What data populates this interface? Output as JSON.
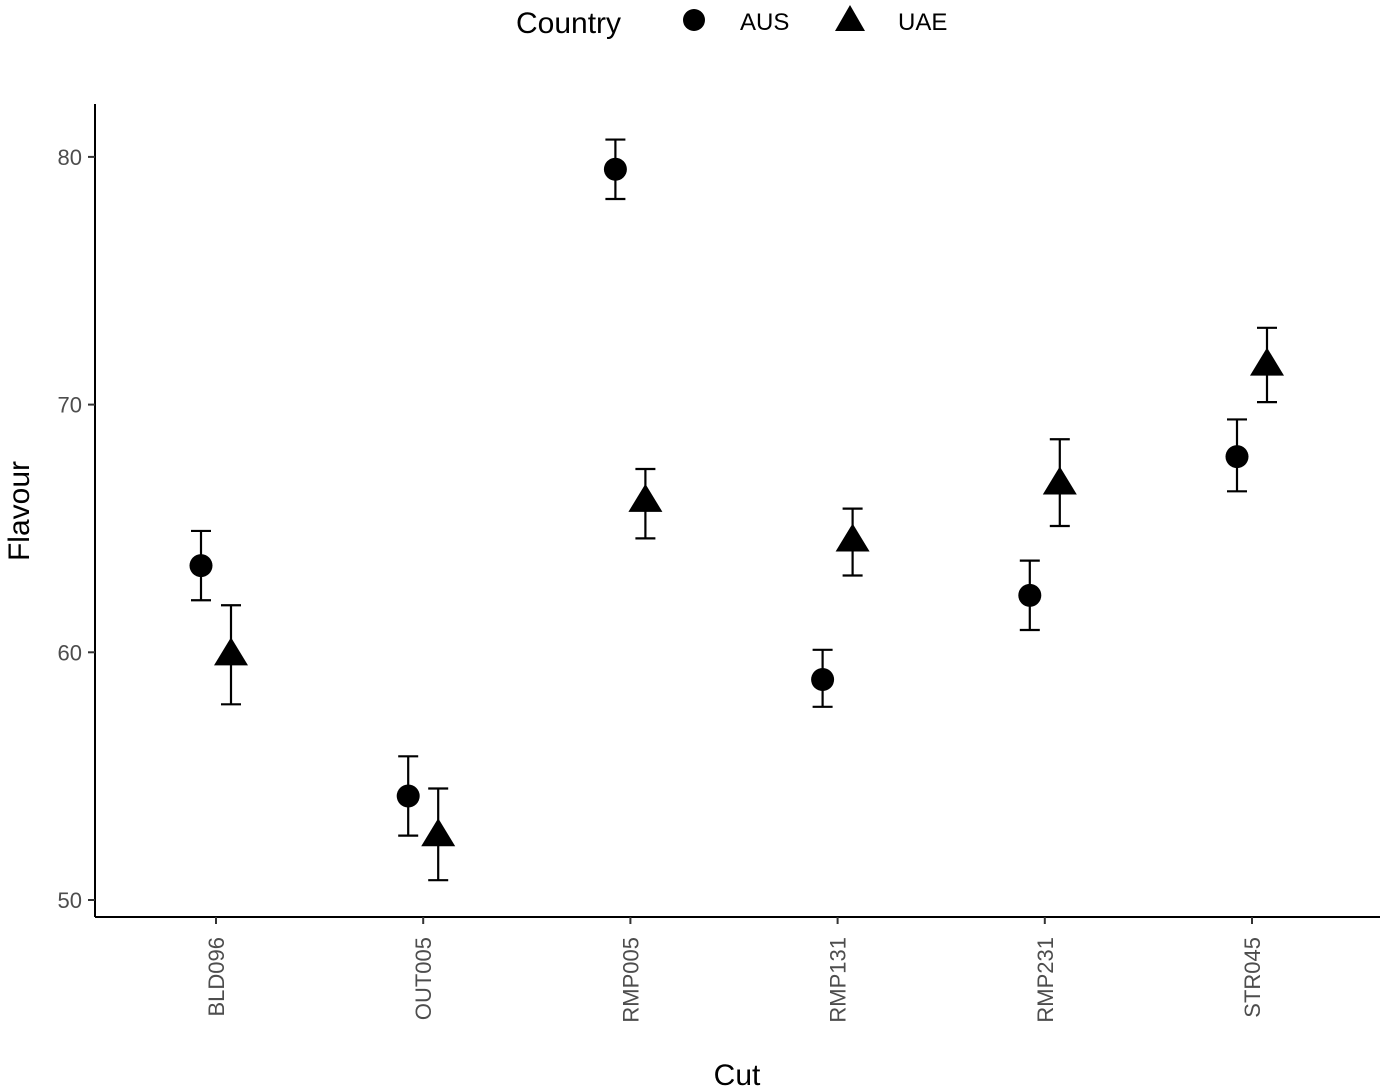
{
  "chart_data": {
    "type": "scatter",
    "title": "",
    "xlabel": "Cut",
    "ylabel": "Flavour",
    "ylim": [
      49.3,
      82.2
    ],
    "yticks": [
      50,
      60,
      70,
      80
    ],
    "grid": false,
    "legend": {
      "title": "Country",
      "position": "top"
    },
    "categories": [
      "BLD096",
      "OUT005",
      "RMP005",
      "RMP131",
      "RMP231",
      "STR045"
    ],
    "series": [
      {
        "name": "AUS",
        "marker": "circle",
        "values": [
          63.5,
          54.2,
          79.5,
          58.9,
          62.3,
          67.9
        ],
        "lower": [
          62.1,
          52.6,
          78.3,
          57.8,
          60.9,
          66.5
        ],
        "upper": [
          64.9,
          55.8,
          80.7,
          60.1,
          63.7,
          69.4
        ]
      },
      {
        "name": "UAE",
        "marker": "triangle",
        "values": [
          59.9,
          52.6,
          66.1,
          64.5,
          66.8,
          71.6
        ],
        "lower": [
          57.9,
          50.8,
          64.6,
          63.1,
          65.1,
          70.1
        ],
        "upper": [
          61.9,
          54.5,
          67.4,
          65.8,
          68.6,
          73.1
        ]
      }
    ],
    "colors": {
      "points": "#000000",
      "axis": "#000000",
      "tick_text": "#4d4d4d"
    }
  }
}
